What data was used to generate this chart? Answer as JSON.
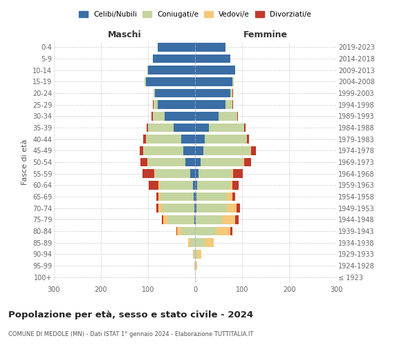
{
  "age_groups": [
    "100+",
    "95-99",
    "90-94",
    "85-89",
    "80-84",
    "75-79",
    "70-74",
    "65-69",
    "60-64",
    "55-59",
    "50-54",
    "45-49",
    "40-44",
    "35-39",
    "30-34",
    "25-29",
    "20-24",
    "15-19",
    "10-14",
    "5-9",
    "0-4"
  ],
  "birth_years": [
    "≤ 1923",
    "1924-1928",
    "1929-1933",
    "1934-1938",
    "1939-1943",
    "1944-1948",
    "1949-1953",
    "1954-1958",
    "1959-1963",
    "1964-1968",
    "1969-1973",
    "1974-1978",
    "1979-1983",
    "1984-1988",
    "1989-1993",
    "1994-1998",
    "1999-2003",
    "2004-2008",
    "2009-2013",
    "2014-2018",
    "2019-2023"
  ],
  "male": {
    "celibi": [
      0,
      0,
      0,
      0,
      0,
      2,
      2,
      3,
      5,
      10,
      20,
      25,
      30,
      45,
      65,
      80,
      85,
      105,
      100,
      90,
      80
    ],
    "coniugati": [
      0,
      1,
      3,
      10,
      30,
      55,
      68,
      70,
      70,
      75,
      80,
      85,
      75,
      55,
      25,
      8,
      3,
      2,
      1,
      0,
      0
    ],
    "vedovi": [
      0,
      0,
      1,
      4,
      8,
      10,
      8,
      5,
      3,
      2,
      1,
      0,
      0,
      0,
      0,
      0,
      0,
      0,
      0,
      0,
      0
    ],
    "divorziati": [
      0,
      0,
      0,
      0,
      2,
      4,
      5,
      5,
      20,
      25,
      15,
      8,
      5,
      3,
      2,
      1,
      0,
      0,
      0,
      0,
      0
    ]
  },
  "female": {
    "nubili": [
      0,
      0,
      0,
      0,
      0,
      2,
      3,
      3,
      5,
      8,
      12,
      18,
      20,
      30,
      50,
      65,
      75,
      80,
      85,
      75,
      65
    ],
    "coniugate": [
      0,
      2,
      5,
      20,
      45,
      55,
      65,
      65,
      70,
      70,
      90,
      100,
      90,
      75,
      40,
      15,
      5,
      2,
      1,
      0,
      0
    ],
    "vedove": [
      0,
      3,
      8,
      20,
      30,
      28,
      20,
      12,
      5,
      3,
      2,
      1,
      0,
      0,
      0,
      0,
      0,
      0,
      0,
      0,
      0
    ],
    "divorziate": [
      0,
      0,
      0,
      0,
      5,
      8,
      8,
      5,
      12,
      20,
      15,
      10,
      5,
      2,
      1,
      1,
      1,
      0,
      0,
      0,
      0
    ]
  },
  "colors": {
    "celibi": "#3a6ea5",
    "coniugati": "#c5d5a0",
    "vedovi": "#f5c87a",
    "divorziati": "#c0392b"
  },
  "title": "Popolazione per età, sesso e stato civile - 2024",
  "subtitle": "COMUNE DI MEDOLE (MN) - Dati ISTAT 1° gennaio 2024 - Elaborazione TUTTITALIA.IT",
  "xlabel_left": "Maschi",
  "xlabel_right": "Femmine",
  "ylabel_left": "Fasce di età",
  "xlim": 300,
  "background_color": "#ffffff",
  "grid_color": "#cccccc"
}
